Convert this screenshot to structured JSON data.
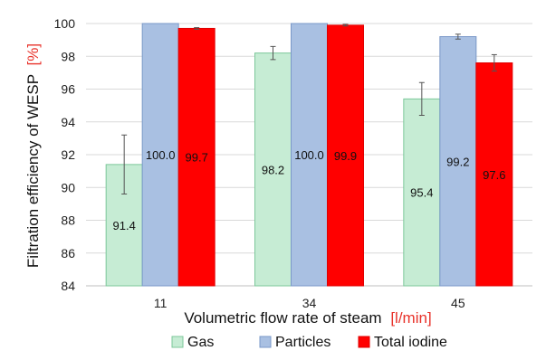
{
  "chart_data": {
    "type": "bar",
    "categories": [
      "11",
      "34",
      "45"
    ],
    "series": [
      {
        "name": "Gas",
        "values": [
          91.4,
          98.2,
          95.4
        ],
        "errors": [
          1.8,
          0.4,
          1.0
        ],
        "labels": [
          "91.4",
          "98.2",
          "95.4"
        ]
      },
      {
        "name": "Particles",
        "values": [
          100.0,
          100.0,
          99.2
        ],
        "errors": [
          0.0,
          0.0,
          0.15
        ],
        "labels": [
          "100.0",
          "100.0",
          "99.2"
        ]
      },
      {
        "name": "Total iodine",
        "values": [
          99.7,
          99.9,
          97.6
        ],
        "errors": [
          0.05,
          0.05,
          0.5
        ],
        "labels": [
          "99.7",
          "99.9",
          "97.6"
        ]
      }
    ],
    "ylim": [
      84,
      100
    ],
    "yticks": [
      "84",
      "86",
      "88",
      "90",
      "92",
      "94",
      "96",
      "98",
      "100"
    ],
    "ylabel": "Filtration efficiency of WESP",
    "ylabel_unit": "[%]",
    "xlabel": "Volumetric flow rate of steam",
    "xlabel_unit": "[l/min]",
    "legend_position": "bottom",
    "grid": "horizontal",
    "colors": {
      "Gas": {
        "fill": "#c6ecd4",
        "stroke": "#7cc79a"
      },
      "Particles": {
        "fill": "#a9c0e2",
        "stroke": "#7a98c8"
      },
      "Total iodine": {
        "fill": "#ff0000",
        "stroke": "#e00000"
      },
      "unit_text": "#e8322a",
      "grid": "#d9d9d9"
    }
  }
}
